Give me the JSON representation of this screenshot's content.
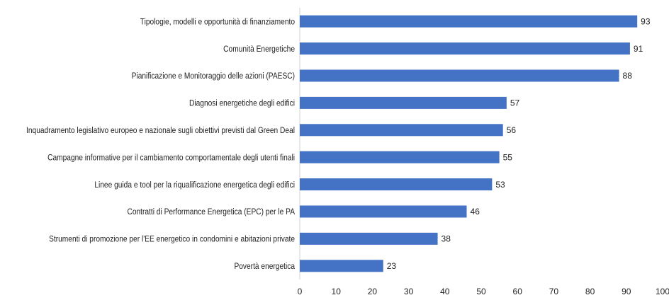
{
  "chart_data": {
    "type": "bar",
    "orientation": "horizontal",
    "categories": [
      "Tipologie, modelli e opportunità di finanziamento",
      "Comunità Energetiche",
      "Pianificazione e Monitoraggio delle azioni (PAESC)",
      "Diagnosi energetiche degli edifici",
      "Inquadramento legislativo europeo e nazionale sugli obiettivi previsti dal Green Deal",
      "Campagne informative per il cambiamento comportamentale degli utenti finali",
      "Linee guida e tool per la riqualificazione energetica degli edifici",
      "Contratti  di Performance Energetica (EPC) per le PA",
      "Strumenti  di promozione per l'EE energetico in condomini e abitazioni private",
      "Povertà energetica"
    ],
    "values": [
      93,
      91,
      88,
      57,
      56,
      55,
      53,
      46,
      38,
      23
    ],
    "color": "#4472c4",
    "xlim": [
      0,
      100
    ],
    "xticks": [
      0,
      10,
      20,
      30,
      40,
      50,
      60,
      70,
      80,
      90,
      100
    ],
    "grid": false
  }
}
